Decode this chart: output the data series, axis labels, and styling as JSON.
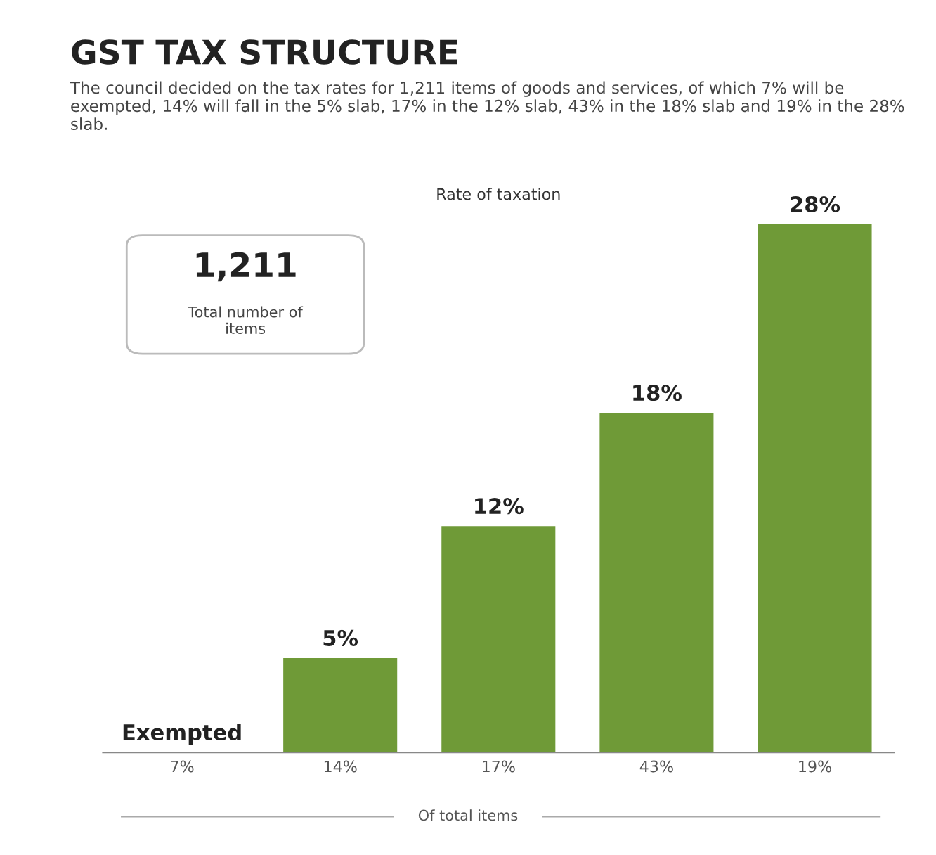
{
  "chart_data": {
    "type": "bar",
    "title": "GST TAX STRUCTURE",
    "subtitle": "The council decided on the tax rates for 1,211 items of goods and services, of which 7% will be exempted, 14% will fall in the 5% slab, 17% in the 12% slab, 43% in the 18% slab and 19% in the 28% slab.",
    "ylabel": "Rate of taxation",
    "xlabel": "Of total items",
    "categories": [
      "7%",
      "14%",
      "17%",
      "43%",
      "19%"
    ],
    "values": [
      0,
      5,
      12,
      18,
      28
    ],
    "value_labels": [
      "Exempted",
      "5%",
      "12%",
      "18%",
      "28%"
    ],
    "color": "#6f9a37",
    "annotations": [
      "1,211",
      "Total number of items"
    ],
    "grid": false
  }
}
